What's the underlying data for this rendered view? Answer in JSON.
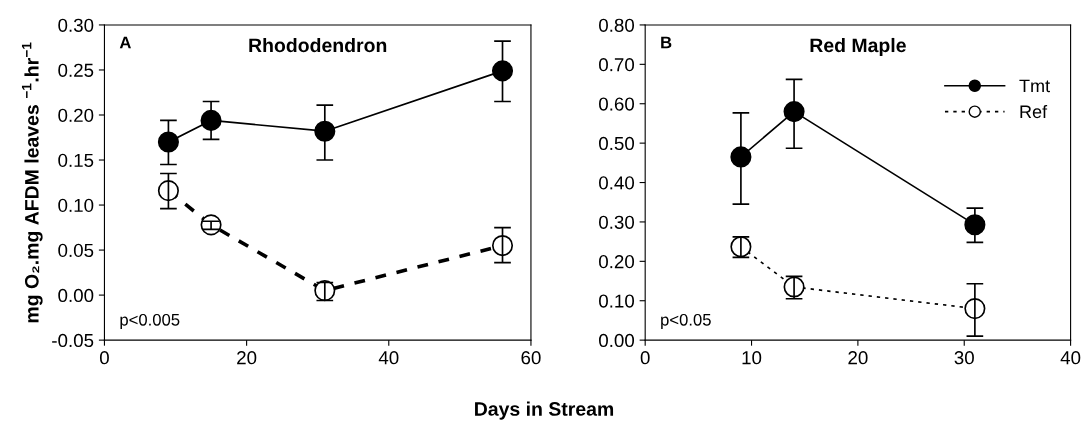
{
  "chart_data": [
    {
      "type": "line",
      "title": "Rhododendron",
      "ylabel": "mg O₂.mg AFDM leaves $^{−1}$.hr$^{−1}$",
      "xlabel": "Days in Stream",
      "annotations": [
        "A",
        "p<0.005"
      ],
      "xlim": [
        0,
        60
      ],
      "xticks": [
        0,
        20,
        40,
        60
      ],
      "ylim": [
        -0.05,
        0.3
      ],
      "yticks": [
        {
          "value": -0.05,
          "label": "-0.05"
        },
        {
          "value": 0,
          "label": "0.00"
        },
        {
          "value": 0.05,
          "label": "0.05"
        },
        {
          "value": 0.1,
          "label": "0.10"
        },
        {
          "value": 0.15,
          "label": "0.15"
        },
        {
          "value": 0.2,
          "label": "0.20"
        },
        {
          "value": 0.25,
          "label": "0.25"
        },
        {
          "value": 0.3,
          "label": "0.30"
        }
      ],
      "grid": false,
      "legend": false,
      "marker": "circle",
      "series": [
        {
          "color": "#000000",
          "line_style": "solid",
          "x": [
            9,
            15,
            31,
            56
          ],
          "values": [
            0.17,
            0.194,
            0.182,
            0.249
          ],
          "errors": [
            [
              0.145,
              0.194
            ],
            [
              0.173,
              0.215
            ],
            [
              0.15,
              0.211
            ],
            [
              0.215,
              0.282
            ]
          ]
        },
        {
          "color": "#ffffff",
          "line_style": "dashed",
          "x": [
            9,
            15,
            31,
            56
          ],
          "values": [
            0.116,
            0.078,
            0.005,
            0.055
          ],
          "errors": [
            [
              0.096,
              0.135
            ],
            [
              0.073,
              0.082
            ],
            [
              -0.006,
              0.014
            ],
            [
              0.036,
              0.075
            ]
          ]
        }
      ]
    },
    {
      "type": "line",
      "title": "Red Maple",
      "annotations": [
        "B",
        "p<0.05"
      ],
      "xlim": [
        0,
        40
      ],
      "xticks": [
        0,
        10,
        20,
        30,
        40
      ],
      "ylim": [
        0,
        0.8
      ],
      "yticks": [
        {
          "value": 0,
          "label": "0.00"
        },
        {
          "value": 0.1,
          "label": "0.10"
        },
        {
          "value": 0.2,
          "label": "0.20"
        },
        {
          "value": 0.3,
          "label": "0.30"
        },
        {
          "value": 0.4,
          "label": "0.40"
        },
        {
          "value": 0.5,
          "label": "0.50"
        },
        {
          "value": 0.6,
          "label": "0.60"
        },
        {
          "value": 0.7,
          "label": "0.70"
        },
        {
          "value": 0.8,
          "label": "0.80"
        }
      ],
      "grid": false,
      "legend": "top right",
      "marker": "circle",
      "series": [
        {
          "name": "Tmt",
          "color": "#000000",
          "line_style": "solid",
          "x": [
            9,
            14,
            31
          ],
          "values": [
            0.465,
            0.58,
            0.293
          ],
          "errors": [
            [
              0.345,
              0.577
            ],
            [
              0.487,
              0.662
            ],
            [
              0.248,
              0.335
            ]
          ]
        },
        {
          "name": "Ref",
          "color": "#ffffff",
          "line_style": "dotted",
          "x": [
            9,
            14,
            31
          ],
          "values": [
            0.237,
            0.135,
            0.08
          ],
          "errors": [
            [
              0.21,
              0.262
            ],
            [
              0.105,
              0.162
            ],
            [
              0.01,
              0.143
            ]
          ]
        }
      ]
    }
  ]
}
